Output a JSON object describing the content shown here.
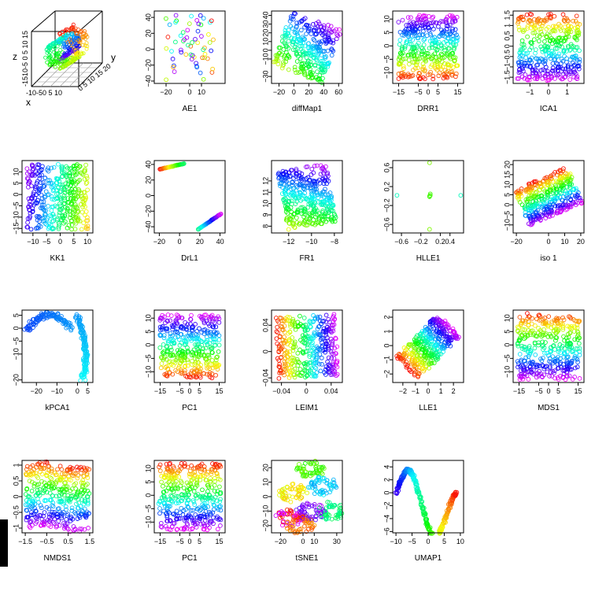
{
  "chart_data": [
    {
      "type": "scatter3d",
      "shape": "swiss-roll",
      "axis_letters": {
        "x": "x",
        "y": "y",
        "z": "z"
      },
      "z_ticks_text": "-1510-5 0 5 10 15",
      "x_ticks_text": "-10-50 5 10",
      "y_ticks_text": "0 5 10 15 20",
      "colors": "rainbow"
    },
    {
      "type": "scatter",
      "shape": "ae",
      "xlabel": "AE1",
      "ylabel": "",
      "xlim": [
        -30,
        30
      ],
      "ylim": [
        -43,
        48
      ],
      "xticks": [
        -20,
        0,
        10
      ],
      "yticks": [
        -40,
        -20,
        0,
        20,
        40
      ],
      "colors": "rainbow",
      "n_points": 60
    },
    {
      "type": "scatter",
      "shape": "diffmap",
      "xlabel": "diffMap1",
      "ylabel": "",
      "xlim": [
        -30,
        65
      ],
      "ylim": [
        -38,
        45
      ],
      "xticks": [
        -20,
        0,
        20,
        40,
        60
      ],
      "yticks": [
        -30,
        -10,
        0,
        10,
        20,
        30,
        40
      ],
      "colors": "rainbow",
      "n_points": 320
    },
    {
      "type": "scatter",
      "shape": "strip",
      "xlabel": "DRR1",
      "ylabel": "",
      "xlim": [
        -18,
        18
      ],
      "ylim": [
        -14,
        13
      ],
      "xticks": [
        -15,
        -5,
        0,
        5,
        15
      ],
      "yticks": [
        -10,
        -5,
        0,
        5,
        10
      ],
      "colors": "rainbow",
      "n_points": 380
    },
    {
      "type": "scatter",
      "shape": "bands",
      "xlabel": "ICA1",
      "ylabel": "",
      "xlim": [
        -1.9,
        1.9
      ],
      "ylim": [
        -1.8,
        1.7
      ],
      "xticks": [
        -1,
        0,
        1
      ],
      "yticks": [
        -1.5,
        -1.0,
        -0.5,
        0.0,
        0.5,
        1.0,
        1.5
      ],
      "colors": "rainbow",
      "n_points": 380
    },
    {
      "type": "scatter",
      "shape": "kk",
      "xlabel": "KK1",
      "ylabel": "",
      "xlim": [
        -14,
        12
      ],
      "ylim": [
        -17,
        15
      ],
      "xticks": [
        -10,
        -5,
        0,
        5,
        10
      ],
      "yticks": [
        -15,
        -10,
        -5,
        0,
        5,
        10
      ],
      "colors": "rainbow",
      "n_points": 380
    },
    {
      "type": "scatter",
      "shape": "drl",
      "xlabel": "DrL1",
      "ylabel": "",
      "xlim": [
        -25,
        45
      ],
      "ylim": [
        -48,
        45
      ],
      "xticks": [
        -20,
        0,
        20,
        40
      ],
      "yticks": [
        -40,
        -20,
        0,
        20,
        40
      ],
      "colors": "rainbow",
      "n_points": 70
    },
    {
      "type": "scatter",
      "shape": "fr",
      "xlabel": "FR1",
      "ylabel": "",
      "xlim": [
        -13.5,
        -7.3
      ],
      "ylim": [
        7.4,
        13.8
      ],
      "xticks": [
        -12,
        -10,
        -8
      ],
      "yticks": [
        8,
        9,
        10,
        11,
        12
      ],
      "colors": "rainbow",
      "n_points": 380
    },
    {
      "type": "scatter",
      "shape": "hlle",
      "xlabel": "HLLE1",
      "ylabel": "",
      "xlim": [
        -0.78,
        0.68
      ],
      "ylim": [
        -0.78,
        0.75
      ],
      "xticks": [
        -0.6,
        -0.2,
        0.2,
        0.4
      ],
      "yticks": [
        -0.6,
        -0.2,
        0.2,
        0.6
      ],
      "colors": "rainbow",
      "n_points": 8
    },
    {
      "type": "scatter",
      "shape": "iso",
      "xlabel": "iso 1",
      "ylabel": "",
      "xlim": [
        -22,
        22
      ],
      "ylim": [
        -14,
        22
      ],
      "xticks": [
        -20,
        0,
        10,
        20
      ],
      "yticks": [
        -10,
        -5,
        0,
        5,
        10,
        15,
        20
      ],
      "colors": "rainbow",
      "n_points": 380
    },
    {
      "type": "scatter",
      "shape": "kpca",
      "xlabel": "kPCA1",
      "ylabel": "",
      "xlim": [
        -27,
        7.5
      ],
      "ylim": [
        -21,
        7
      ],
      "xticks": [
        -20,
        -10,
        0,
        5
      ],
      "yticks": [
        -20,
        -10,
        -5,
        0,
        5
      ],
      "colors": "rainbow",
      "n_points": 240
    },
    {
      "type": "scatter",
      "shape": "strip",
      "xlabel": "PC1",
      "ylabel": "",
      "xlim": [
        -18,
        18
      ],
      "ylim": [
        -14,
        13
      ],
      "xticks": [
        -15,
        -5,
        0,
        5,
        15
      ],
      "yticks": [
        -10,
        -5,
        0,
        5,
        10
      ],
      "colors": "rainbow",
      "n_points": 380
    },
    {
      "type": "scatter",
      "shape": "leim",
      "xlabel": "LEIM1",
      "ylabel": "",
      "xlim": [
        -0.056,
        0.058
      ],
      "ylim": [
        -0.047,
        0.063
      ],
      "xticks": [
        -0.04,
        0.0,
        0.04
      ],
      "yticks": [
        -0.04,
        0.0,
        0.04
      ],
      "colors": "rainbow",
      "n_points": 380
    },
    {
      "type": "scatter",
      "shape": "lle",
      "xlabel": "LLE1",
      "ylabel": "",
      "xlim": [
        -2.8,
        2.8
      ],
      "ylim": [
        -2.6,
        2.5
      ],
      "xticks": [
        -2,
        -1,
        0,
        1,
        2
      ],
      "yticks": [
        -2,
        -1,
        0,
        1,
        2
      ],
      "colors": "rainbow",
      "n_points": 380
    },
    {
      "type": "scatter",
      "shape": "bandsy",
      "xlabel": "MDS1",
      "ylabel": "",
      "xlim": [
        -18,
        18
      ],
      "ylim": [
        -14,
        13
      ],
      "xticks": [
        -15,
        -5,
        0,
        5,
        15
      ],
      "yticks": [
        -10,
        -5,
        0,
        5,
        10
      ],
      "colors": "rainbow",
      "n_points": 380
    },
    {
      "type": "scatter",
      "shape": "nmds",
      "xlabel": "NMDS1",
      "ylabel": "",
      "xlim": [
        -1.65,
        1.65
      ],
      "ylim": [
        -1.15,
        1.15
      ],
      "xticks": [
        -1.5,
        -0.5,
        0.5,
        1.5
      ],
      "yticks": [
        -1.0,
        -0.5,
        0.0,
        0.5,
        1.0
      ],
      "colors": "rainbow",
      "n_points": 380
    },
    {
      "type": "scatter",
      "shape": "bandsy",
      "xlabel": "PC1",
      "ylabel": "",
      "xlim": [
        -18,
        18
      ],
      "ylim": [
        -14,
        13
      ],
      "xticks": [
        -15,
        -5,
        0,
        5,
        15
      ],
      "yticks": [
        -10,
        -5,
        0,
        5,
        10
      ],
      "colors": "rainbow",
      "n_points": 380
    },
    {
      "type": "scatter",
      "shape": "tsne",
      "xlabel": "tSNE1",
      "ylabel": "",
      "xlim": [
        -28,
        35
      ],
      "ylim": [
        -25,
        25
      ],
      "xticks": [
        -20,
        0,
        10,
        30
      ],
      "yticks": [
        -20,
        -10,
        0,
        10,
        20
      ],
      "colors": "rainbow",
      "n_points": 380
    },
    {
      "type": "scatter",
      "shape": "umap",
      "xlabel": "UMAP1",
      "ylabel": "",
      "xlim": [
        -11,
        11
      ],
      "ylim": [
        -6.2,
        5
      ],
      "xticks": [
        -10,
        -5,
        0,
        5,
        10
      ],
      "yticks": [
        -6,
        -4,
        -2,
        0,
        2,
        4
      ],
      "colors": "rainbow",
      "n_points": 300
    }
  ]
}
